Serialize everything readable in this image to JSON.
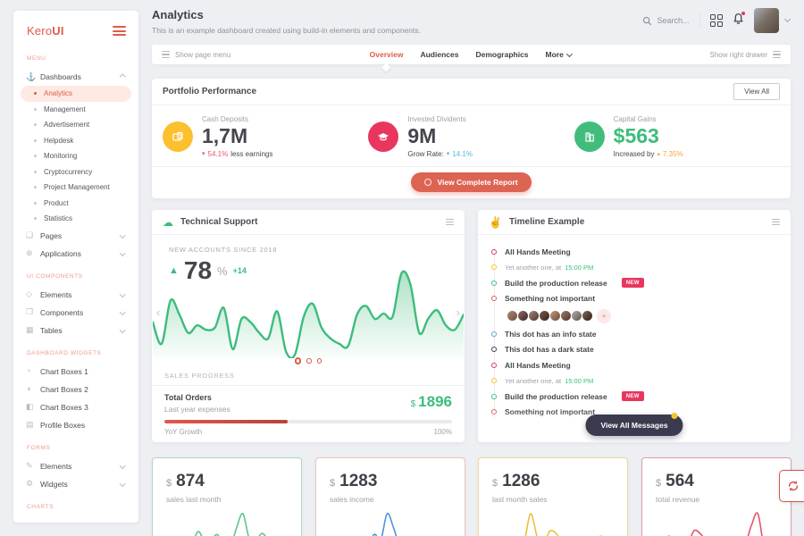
{
  "brand": {
    "first": "Kero",
    "second": "UI"
  },
  "header": {
    "title": "Analytics",
    "subtitle": "This is an example dashboard created using build-in elements and components.",
    "search_label": "Search..."
  },
  "pagenav": {
    "left_label": "Show page menu",
    "tabs": [
      {
        "label": "Overview",
        "active": true
      },
      {
        "label": "Audiences",
        "active": false
      },
      {
        "label": "Demographics",
        "active": false
      },
      {
        "label": "More",
        "active": false
      }
    ],
    "right_label": "Show right drawer"
  },
  "sidebar": {
    "section_menu": "MENU",
    "dashboards": {
      "label": "Dashboards",
      "children": [
        "Analytics",
        "Management",
        "Advertisement",
        "Helpdesk",
        "Monitoring",
        "Cryptocurrency",
        "Project Management",
        "Product",
        "Statistics"
      ],
      "active_child": "Analytics"
    },
    "pages_label": "Pages",
    "applications_label": "Applications",
    "section_ui": "UI COMPONENTS",
    "ui_items": [
      "Elements",
      "Components",
      "Tables"
    ],
    "section_widgets": "DASHBOARD WIDGETS",
    "widget_items": [
      "Chart Boxes 1",
      "Chart Boxes 2",
      "Chart Boxes 3",
      "Profile Boxes"
    ],
    "section_forms": "FORMS",
    "form_items": [
      "Elements",
      "Widgets"
    ],
    "section_charts": "CHARTS"
  },
  "portfolio": {
    "title": "Portfolio Performance",
    "view_all": "View All",
    "metrics": [
      {
        "label": "Cash Deposits",
        "value": "1,7M",
        "caret": "▾",
        "delta": "54.1%",
        "note": "less earnings",
        "delta_color": "#e8566d",
        "circle": "#fcc02e",
        "value_color": "#45464d"
      },
      {
        "label": "Invested Dividents",
        "value": "9M",
        "prefix": "Grow Rate:",
        "caret": "▾",
        "delta": "14.1%",
        "delta_color": "#52b7e0",
        "circle": "#e8365f",
        "value_color": "#45464d"
      },
      {
        "label": "Capital Gains",
        "value": "$563",
        "prefix": "Increased by",
        "caret": "▴",
        "delta": "7.35%",
        "delta_color": "#f1a43e",
        "circle": "#41bd7b",
        "value_color": "#3cbd7c"
      }
    ],
    "report_button": "View Complete Report"
  },
  "support": {
    "title": "Technical Support",
    "kpi_label": "NEW ACCOUNTS SINCE 2018",
    "kpi_caret": "▲",
    "kpi_value": "78",
    "kpi_unit": "%",
    "kpi_delta": "+14",
    "sales_progress_label": "SALES PROGRESS",
    "orders_title": "Total Orders",
    "orders_sub": "Last year expenses",
    "orders_currency": "$",
    "orders_value": "1896",
    "progress_width": "43%",
    "yoy_label": "YoY Growth",
    "yoy_value": "100%"
  },
  "timeline": {
    "title": "Timeline Example",
    "items": [
      {
        "text": "All Hands Meeting",
        "dot": "#d7385e"
      },
      {
        "text": "Yet another one, at",
        "time": "15:00 PM",
        "dot": "#fdc12f"
      },
      {
        "text": "Build the production release",
        "badge": "NEW",
        "dot": "#3cbd7c"
      },
      {
        "text": "Something not important",
        "dot": "#e25663"
      },
      {
        "type": "avatars",
        "count": 8,
        "add_label": "+"
      },
      {
        "text": "This dot has an info state",
        "dot": "#54a8e0"
      },
      {
        "text": "This dot has a dark state",
        "dot": "#3b3b4f"
      },
      {
        "text": "All Hands Meeting",
        "dot": "#d7385e"
      },
      {
        "text": "Yet another one, at",
        "time": "15:00 PM",
        "dot": "#fdc12f"
      },
      {
        "text": "Build the production release",
        "badge": "NEW",
        "dot": "#3cbd7c"
      },
      {
        "text": "Something not important",
        "dot": "#e25663"
      }
    ],
    "view_all_button": "View All Messages"
  },
  "stat_cards": [
    {
      "currency": "$",
      "value": "874",
      "label": "sales last month",
      "accent": "#a9d9bf"
    },
    {
      "currency": "$",
      "value": "1283",
      "label": "sales income",
      "accent": "#ecc4bc"
    },
    {
      "currency": "$",
      "value": "1286",
      "label": "last month sales",
      "accent": "#ecd79b"
    },
    {
      "currency": "$",
      "value": "564",
      "label": "total revenue",
      "accent": "#dd9aae"
    }
  ],
  "icons": [
    "search-icon",
    "apps-grid-icon",
    "bell-icon",
    "hamburger-icon",
    "cloud-icon",
    "victory-hand-icon",
    "refresh-icon",
    "list-icon"
  ],
  "chart_data": {
    "type": "line",
    "title": "NEW ACCOUNTS SINCE 2018",
    "main_series": {
      "name": "new accounts",
      "color": "#3cbd7c",
      "fill": "url(#gGreen)",
      "values": [
        55,
        35,
        75,
        62,
        45,
        52,
        48,
        50,
        68,
        30,
        58,
        55,
        45,
        40,
        65,
        28,
        25,
        60,
        72,
        50,
        40,
        35,
        33,
        62,
        70,
        58,
        63,
        60,
        100,
        90,
        45,
        58,
        66,
        52,
        48,
        62
      ]
    },
    "sparklines": [
      {
        "name": "sales last month",
        "color": "#5ec58f",
        "values": [
          30,
          32,
          29,
          31,
          46,
          36,
          55,
          40,
          42,
          50,
          34,
          30,
          60,
          82,
          44,
          40,
          52,
          42,
          38,
          44,
          40,
          36
        ]
      },
      {
        "name": "sales income",
        "color": "#4f93d8",
        "values": [
          38,
          52,
          34,
          46,
          36,
          42,
          35,
          40,
          56,
          48,
          88,
          66,
          38,
          46,
          36,
          50,
          40,
          46,
          38,
          44,
          46,
          40
        ]
      },
      {
        "name": "last month sales",
        "color": "#e9c23f",
        "values": [
          34,
          46,
          38,
          52,
          36,
          42,
          46,
          90,
          54,
          40,
          62,
          58,
          44,
          38,
          46,
          52,
          40,
          46,
          54,
          44,
          38,
          46
        ]
      },
      {
        "name": "total revenue",
        "color": "#e2566b",
        "values": [
          40,
          46,
          36,
          52,
          42,
          46,
          38,
          62,
          56,
          44,
          50,
          40,
          36,
          48,
          42,
          38,
          72,
          92,
          30,
          34,
          42,
          46
        ]
      }
    ]
  }
}
